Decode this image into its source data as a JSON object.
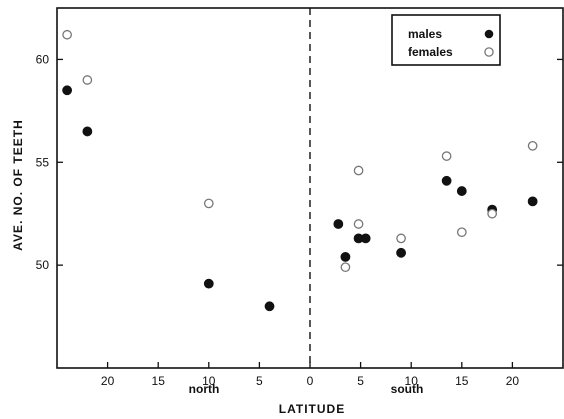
{
  "chart_data": {
    "type": "scatter",
    "xlabel": "LATITUDE",
    "ylabel": "AVE. NO. OF TEETH",
    "region_labels": {
      "north": "north",
      "south": "south"
    },
    "xlim": [
      -25,
      25
    ],
    "ylim": [
      45,
      62.5
    ],
    "xticks": [
      {
        "value": -20,
        "label": "20"
      },
      {
        "value": -15,
        "label": "15"
      },
      {
        "value": -10,
        "label": "10"
      },
      {
        "value": -5,
        "label": "5"
      },
      {
        "value": 0,
        "label": "0"
      },
      {
        "value": 5,
        "label": "5"
      },
      {
        "value": 10,
        "label": "10"
      },
      {
        "value": 15,
        "label": "15"
      },
      {
        "value": 20,
        "label": "20"
      }
    ],
    "yticks": [
      {
        "value": 50,
        "label": "50"
      },
      {
        "value": 55,
        "label": "55"
      },
      {
        "value": 60,
        "label": "60"
      }
    ],
    "divider_x": 0,
    "grid": false,
    "legend": {
      "position": "top-right"
    },
    "series": [
      {
        "name": "males",
        "marker": "filled",
        "color": "#111111",
        "points": [
          {
            "x": -24.0,
            "y": 58.5
          },
          {
            "x": -22.0,
            "y": 56.5
          },
          {
            "x": -10.0,
            "y": 49.1
          },
          {
            "x": -4.0,
            "y": 48.0
          },
          {
            "x": 2.8,
            "y": 52.0
          },
          {
            "x": 3.5,
            "y": 50.4
          },
          {
            "x": 4.8,
            "y": 51.3
          },
          {
            "x": 5.5,
            "y": 51.3
          },
          {
            "x": 9.0,
            "y": 50.6
          },
          {
            "x": 13.5,
            "y": 54.1
          },
          {
            "x": 15.0,
            "y": 53.6
          },
          {
            "x": 18.0,
            "y": 52.7
          },
          {
            "x": 22.0,
            "y": 53.1
          }
        ]
      },
      {
        "name": "females",
        "marker": "open",
        "color": "#777777",
        "points": [
          {
            "x": -24.0,
            "y": 61.2
          },
          {
            "x": -22.0,
            "y": 59.0
          },
          {
            "x": -10.0,
            "y": 53.0
          },
          {
            "x": 3.5,
            "y": 49.9
          },
          {
            "x": 4.8,
            "y": 54.6
          },
          {
            "x": 4.8,
            "y": 52.0
          },
          {
            "x": 9.0,
            "y": 51.3
          },
          {
            "x": 13.5,
            "y": 55.3
          },
          {
            "x": 15.0,
            "y": 51.6
          },
          {
            "x": 18.0,
            "y": 52.5
          },
          {
            "x": 22.0,
            "y": 55.8
          }
        ]
      }
    ]
  }
}
